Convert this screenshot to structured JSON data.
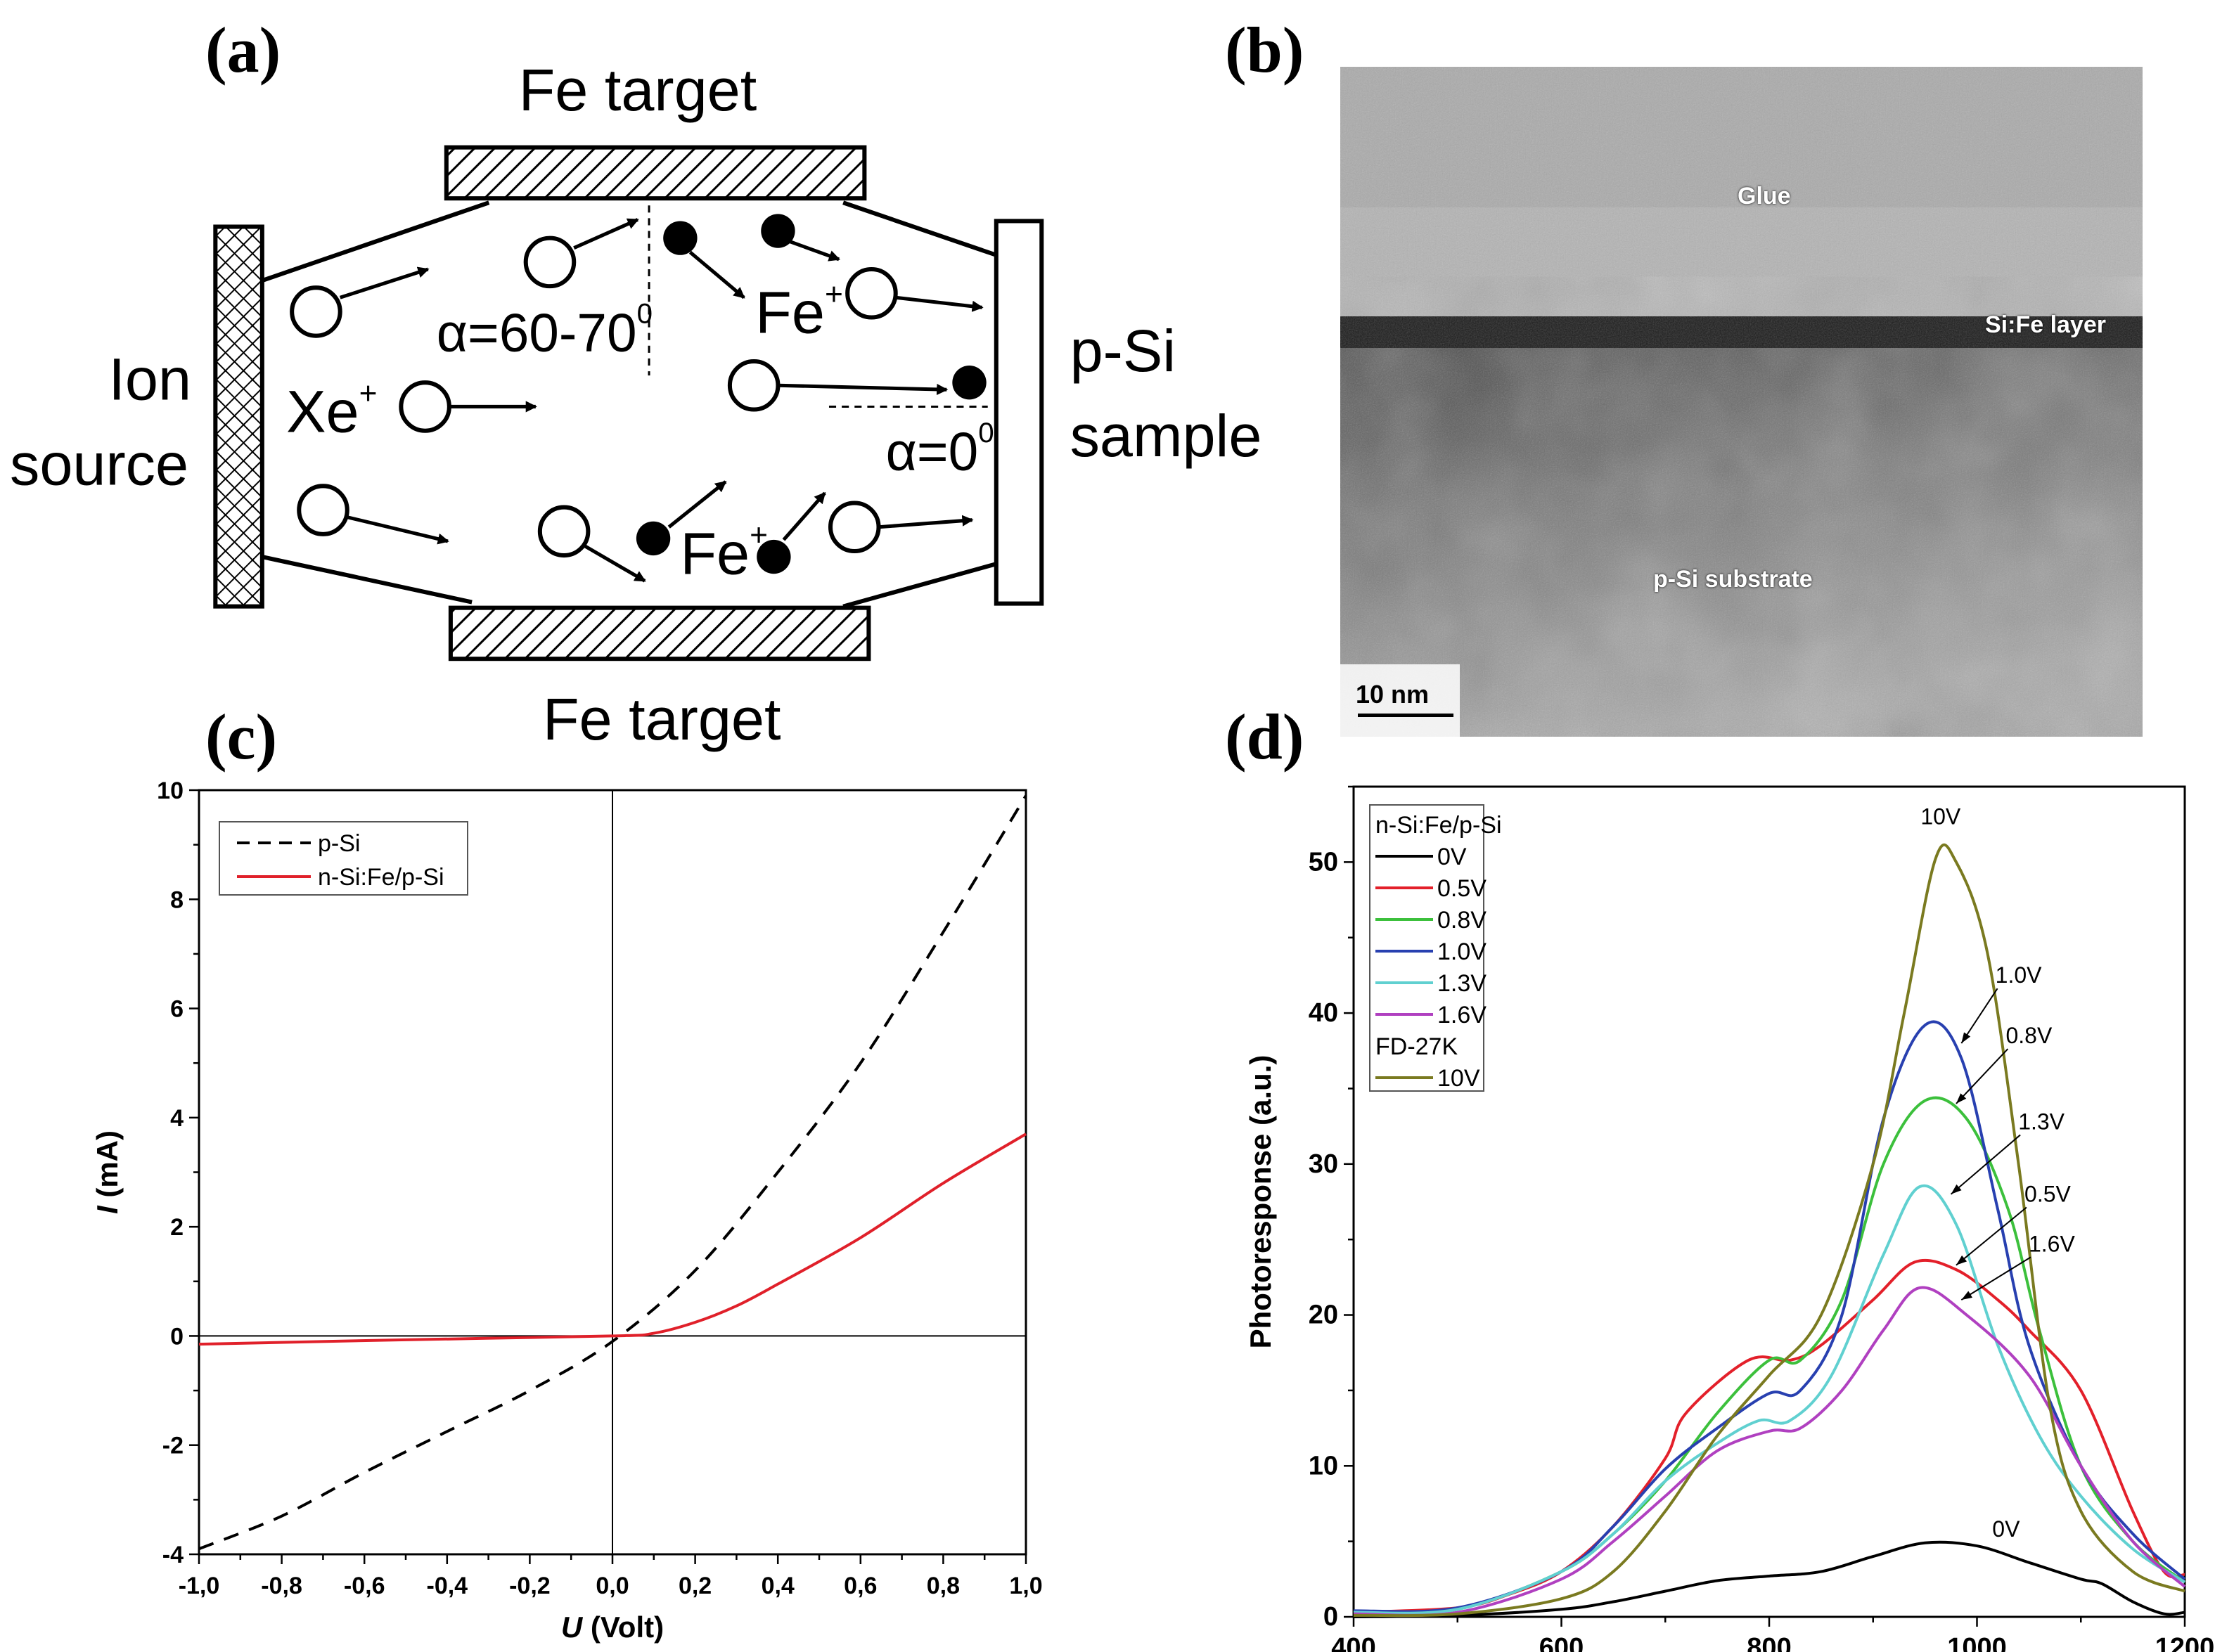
{
  "panels": {
    "a": "(a)",
    "b": "(b)",
    "c": "(c)",
    "d": "(d)"
  },
  "diagram": {
    "top_target": "Fe target",
    "bottom_target": "Fe target",
    "ion_source_line1": "Ion",
    "ion_source_line2": "source",
    "xe_ion": "Xe",
    "plus": "+",
    "fe_ion": "Fe",
    "angle_oblique": "α=60-70",
    "angle_normal": "α=0",
    "degree": "0",
    "sample_line1": "p-Si",
    "sample_line2": "sample"
  },
  "tem": {
    "glue": "Glue",
    "layer": "Si:Fe layer",
    "substrate": "p-Si substrate",
    "scale_bar": "10 nm"
  },
  "chart_data": [
    {
      "type": "line",
      "xlabel_italic": "U",
      "xlabel": " (Volt)",
      "ylabel_italic": "I",
      "ylabel": " (mA)",
      "xlim": [
        -1.0,
        1.0
      ],
      "ylim": [
        -4,
        10
      ],
      "xticks": [
        "-1,0",
        "-0,8",
        "-0,6",
        "-0,4",
        "-0,2",
        "0,0",
        "0,2",
        "0,4",
        "0,6",
        "0,8",
        "1,0"
      ],
      "yticks": [
        "-4",
        "-2",
        "0",
        "2",
        "4",
        "6",
        "8",
        "10"
      ],
      "legend": "top-left",
      "series": [
        {
          "name": "p-Si",
          "color": "#000000",
          "dash": true,
          "x": [
            -1.0,
            -0.8,
            -0.6,
            -0.4,
            -0.2,
            0.0,
            0.2,
            0.4,
            0.6,
            0.8,
            1.0
          ],
          "y": [
            -3.9,
            -3.3,
            -2.5,
            -1.75,
            -1.0,
            -0.1,
            1.2,
            3.0,
            5.0,
            7.4,
            9.9
          ]
        },
        {
          "name": "n-Si:Fe/p-Si",
          "color": "#e0202a",
          "dash": false,
          "x": [
            -1.0,
            -0.5,
            0.0,
            0.1,
            0.2,
            0.3,
            0.4,
            0.6,
            0.8,
            1.0
          ],
          "y": [
            -0.15,
            -0.07,
            0.0,
            0.05,
            0.25,
            0.55,
            0.95,
            1.8,
            2.8,
            3.7
          ]
        }
      ]
    },
    {
      "type": "line",
      "xlabel": "Wavelength (nm)",
      "ylabel": "Photoresponse (a.u.)",
      "xlim": [
        400,
        1200
      ],
      "ylim": [
        0,
        55
      ],
      "xticks": [
        "400",
        "600",
        "800",
        "1000",
        "1200"
      ],
      "yticks": [
        "0",
        "10",
        "20",
        "30",
        "40",
        "50"
      ],
      "legend": "top-left",
      "legend_groups": [
        "n-Si:Fe/p-Si",
        "FD-27K"
      ],
      "series": [
        {
          "name": "0V",
          "group": 0,
          "color": "#000000",
          "x": [
            400,
            500,
            600,
            650,
            700,
            750,
            800,
            850,
            900,
            950,
            1000,
            1050,
            1100,
            1120,
            1150,
            1180,
            1200
          ],
          "y": [
            0,
            0.1,
            0.5,
            1,
            1.7,
            2.4,
            2.7,
            3,
            4,
            4.9,
            4.7,
            3.6,
            2.5,
            2.2,
            1,
            0.2,
            0.3
          ]
        },
        {
          "name": "0.5V",
          "group": 0,
          "color": "#e3202a",
          "x": [
            400,
            500,
            550,
            600,
            650,
            700,
            720,
            780,
            820,
            850,
            900,
            940,
            980,
            1020,
            1050,
            1100,
            1150,
            1180,
            1200
          ],
          "y": [
            0.3,
            0.6,
            1.5,
            3,
            6,
            10.5,
            13.5,
            17,
            17,
            18,
            21,
            23.5,
            23,
            21,
            19,
            15,
            7,
            3,
            2.8
          ]
        },
        {
          "name": "0.8V",
          "group": 0,
          "color": "#3cc03c",
          "x": [
            400,
            500,
            600,
            650,
            700,
            750,
            800,
            830,
            870,
            910,
            950,
            990,
            1030,
            1060,
            1100,
            1150,
            1200
          ],
          "y": [
            0.2,
            0.5,
            3,
            5.5,
            9,
            13.5,
            17,
            17,
            21,
            30,
            34.2,
            33,
            27,
            19,
            10,
            5,
            2.3
          ]
        },
        {
          "name": "1.0V",
          "group": 0,
          "color": "#2840b0",
          "x": [
            400,
            500,
            600,
            650,
            700,
            750,
            800,
            830,
            870,
            910,
            950,
            985,
            1020,
            1050,
            1100,
            1150,
            1200
          ],
          "y": [
            0.4,
            0.6,
            3,
            6,
            9.8,
            12.5,
            14.8,
            15,
            20,
            33,
            39.2,
            37,
            27,
            18,
            10,
            5.5,
            2.5
          ]
        },
        {
          "name": "1.3V",
          "group": 0,
          "color": "#60d0d0",
          "x": [
            400,
            500,
            600,
            650,
            700,
            750,
            790,
            820,
            860,
            910,
            945,
            980,
            1020,
            1060,
            1100,
            1150,
            1200
          ],
          "y": [
            0.3,
            0.5,
            3,
            5.5,
            9,
            11.5,
            13,
            13,
            16,
            24,
            28.5,
            26,
            18,
            12,
            8,
            4.5,
            2.3
          ]
        },
        {
          "name": "1.6V",
          "group": 0,
          "color": "#b040c0",
          "x": [
            400,
            500,
            600,
            650,
            700,
            750,
            800,
            830,
            870,
            910,
            945,
            990,
            1050,
            1100,
            1150,
            1200
          ],
          "y": [
            0.2,
            0.3,
            2.5,
            5,
            8,
            11,
            12.3,
            12.5,
            15,
            19,
            21.8,
            20,
            16,
            10,
            5,
            2
          ]
        },
        {
          "name": "10V",
          "group": 1,
          "color": "#7a7a20",
          "x": [
            400,
            500,
            600,
            650,
            700,
            750,
            800,
            850,
            900,
            930,
            960,
            980,
            1010,
            1040,
            1070,
            1100,
            1150,
            1200
          ],
          "y": [
            0.1,
            0.2,
            1.2,
            3,
            7,
            12,
            16,
            20,
            30,
            40,
            50.2,
            50,
            44,
            30,
            14,
            7,
            3,
            1.7
          ]
        }
      ],
      "annotations": [
        {
          "text": "10V",
          "x": 965,
          "y": 52.5,
          "arrow_to": null
        },
        {
          "text": "1.0V",
          "x": 1040,
          "y": 42,
          "arrow_to": [
            985,
            38
          ]
        },
        {
          "text": "0.8V",
          "x": 1050,
          "y": 38,
          "arrow_to": [
            980,
            34
          ]
        },
        {
          "text": "1.3V",
          "x": 1062,
          "y": 32.3,
          "arrow_to": [
            975,
            28
          ]
        },
        {
          "text": "0.5V",
          "x": 1068,
          "y": 27.5,
          "arrow_to": [
            980,
            23.3
          ]
        },
        {
          "text": "1.6V",
          "x": 1072,
          "y": 24.2,
          "arrow_to": [
            985,
            21
          ]
        },
        {
          "text": "0V",
          "x": 1028,
          "y": 5.3,
          "arrow_to": null
        }
      ]
    }
  ]
}
